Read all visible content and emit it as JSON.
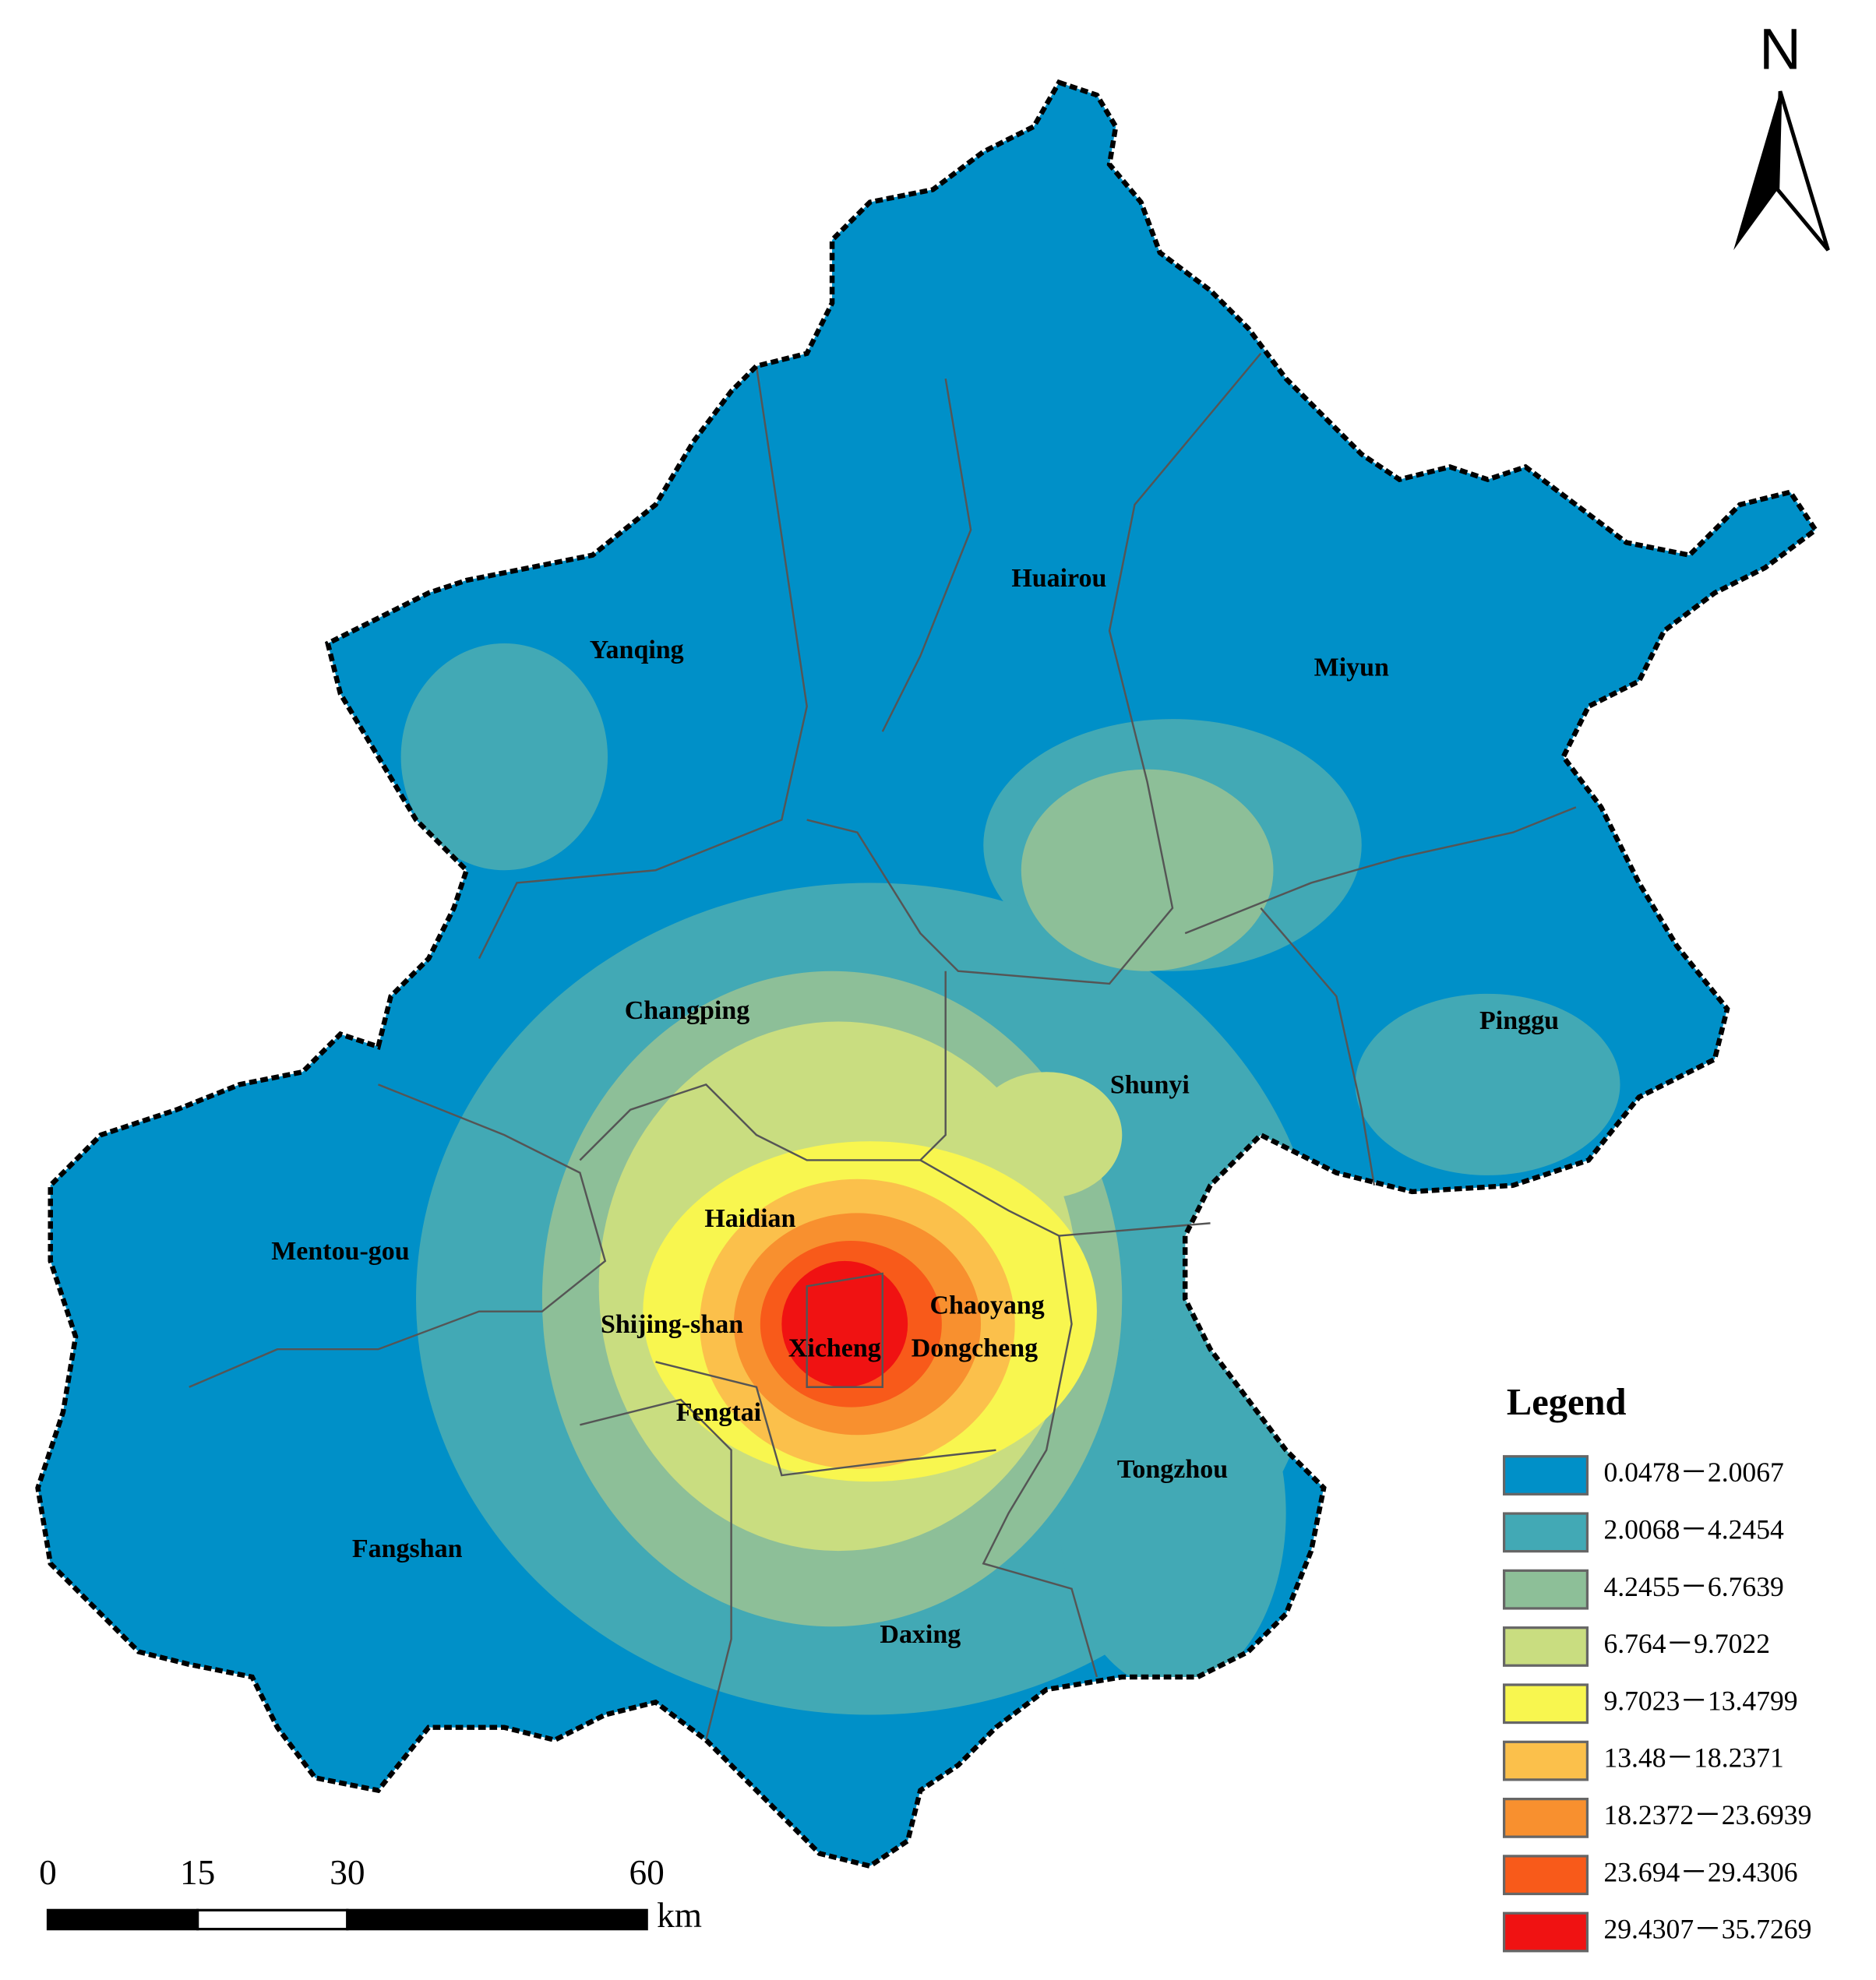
{
  "north_label": "N",
  "districts": [
    "Yanqing",
    "Huairou",
    "Miyun",
    "Changping",
    "Pinggu",
    "Shunyi",
    "Haidian",
    "Mentou-gou",
    "Chaoyang",
    "Shijing-shan",
    "Xicheng",
    "Dongcheng",
    "Fengtai",
    "Tongzhou",
    "Fangshan",
    "Daxing"
  ],
  "legend": {
    "title": "Legend",
    "items": [
      {
        "label": "0.0478－2.0067",
        "color": "#0090c8"
      },
      {
        "label": "2.0068－4.2454",
        "color": "#42a9b5"
      },
      {
        "label": "4.2455－6.7639",
        "color": "#8dbf98"
      },
      {
        "label": "6.764－9.7022",
        "color": "#c9dd80"
      },
      {
        "label": "9.7023－13.4799",
        "color": "#f8f64f"
      },
      {
        "label": "13.48－18.2371",
        "color": "#fbc04b"
      },
      {
        "label": "18.2372－23.6939",
        "color": "#f8902f"
      },
      {
        "label": "23.694－29.4306",
        "color": "#f85a1a"
      },
      {
        "label": "29.4307－35.7269",
        "color": "#f01212"
      }
    ]
  },
  "scale_bar": {
    "ticks": [
      0,
      15,
      30,
      60
    ],
    "unit": "km"
  }
}
